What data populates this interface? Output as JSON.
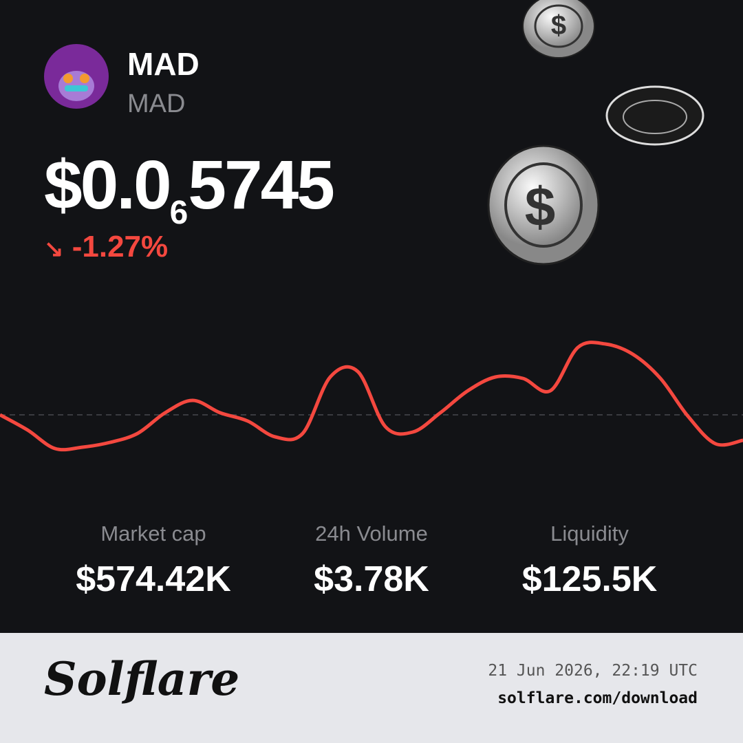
{
  "token": {
    "name": "MAD",
    "symbol": "MAD"
  },
  "price": {
    "prefix": "$0.0",
    "zero_count": "6",
    "digits": "5745"
  },
  "change": "-1.27%",
  "chart_data": {
    "type": "line",
    "color": "#f4483f",
    "values": [
      0,
      -22,
      -49,
      -47,
      -40,
      -27,
      3,
      21,
      3,
      -9,
      -32,
      -27,
      55,
      63,
      -17,
      -25,
      3,
      35,
      55,
      53,
      35,
      98,
      103,
      88,
      53,
      -2,
      -42,
      -37
    ],
    "ylim": [
      -117,
      163
    ],
    "reference": 0
  },
  "stats": [
    {
      "label": "Market cap",
      "value": "$574.42K"
    },
    {
      "label": "24h Volume",
      "value": "$3.78K"
    },
    {
      "label": "Liquidity",
      "value": "$125.5K"
    }
  ],
  "footer": {
    "brand": "Solflare",
    "timestamp": "21 Jun 2026, 22:19 UTC",
    "url": "solflare.com/download"
  }
}
